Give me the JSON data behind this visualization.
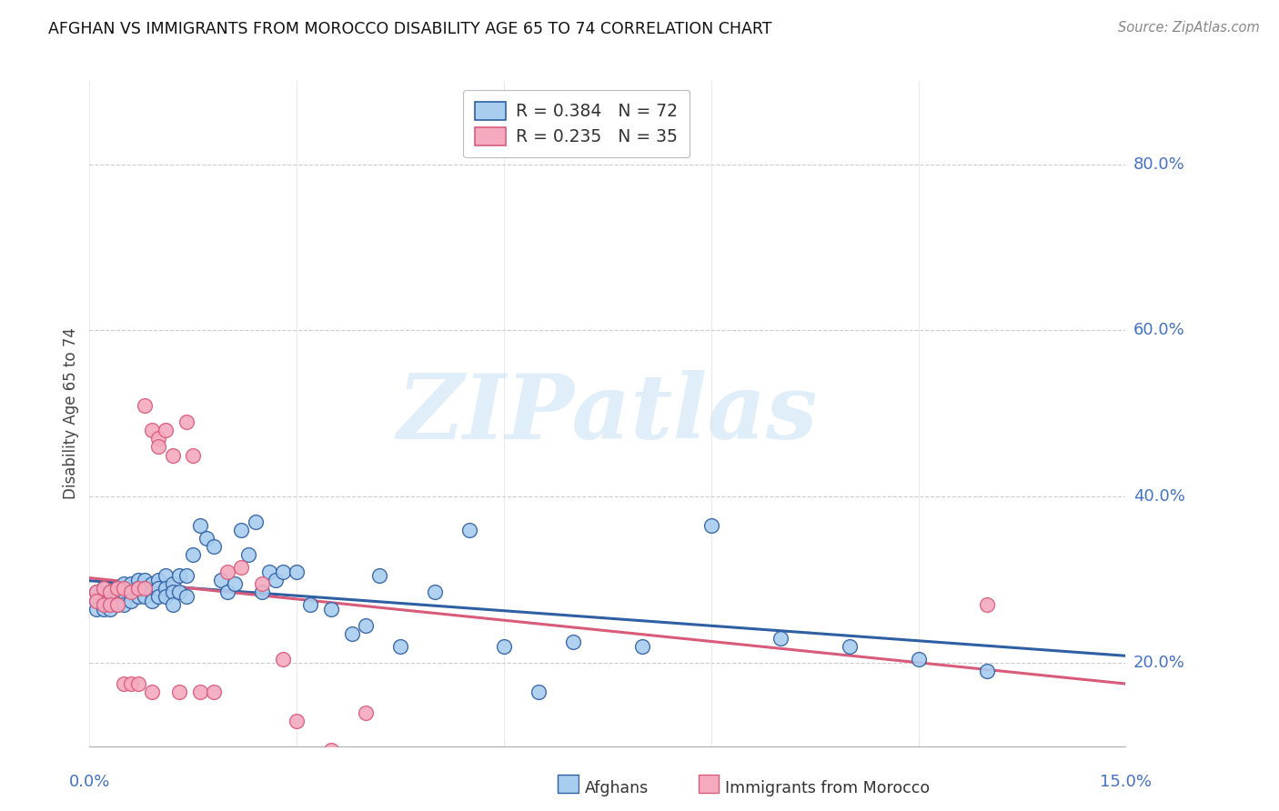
{
  "title": "AFGHAN VS IMMIGRANTS FROM MOROCCO DISABILITY AGE 65 TO 74 CORRELATION CHART",
  "source": "Source: ZipAtlas.com",
  "ylabel": "Disability Age 65 to 74",
  "color_afghan": "#A8CDEF",
  "color_morocco": "#F5AABF",
  "color_afghan_line": "#2E5FA3",
  "color_morocco_line": "#D95B7A",
  "color_text_blue": "#4472C4",
  "color_grid": "#CCCCCC",
  "background_color": "#FFFFFF",
  "xlim": [
    0.0,
    0.15
  ],
  "ylim": [
    0.1,
    0.9
  ],
  "yticks": [
    0.2,
    0.4,
    0.6,
    0.8
  ],
  "legend_r1": "R = 0.384",
  "legend_n1": "N = 72",
  "legend_r2": "R = 0.235",
  "legend_n2": "N = 35",
  "watermark": "ZIPatlas",
  "afghan_x": [
    0.001,
    0.001,
    0.001,
    0.002,
    0.002,
    0.002,
    0.003,
    0.003,
    0.003,
    0.004,
    0.004,
    0.004,
    0.005,
    0.005,
    0.005,
    0.006,
    0.006,
    0.006,
    0.007,
    0.007,
    0.007,
    0.008,
    0.008,
    0.008,
    0.009,
    0.009,
    0.009,
    0.01,
    0.01,
    0.01,
    0.011,
    0.011,
    0.011,
    0.012,
    0.012,
    0.012,
    0.013,
    0.013,
    0.014,
    0.014,
    0.015,
    0.016,
    0.017,
    0.018,
    0.019,
    0.02,
    0.021,
    0.022,
    0.023,
    0.024,
    0.025,
    0.026,
    0.027,
    0.028,
    0.03,
    0.032,
    0.035,
    0.038,
    0.04,
    0.042,
    0.045,
    0.05,
    0.055,
    0.06,
    0.065,
    0.07,
    0.08,
    0.09,
    0.1,
    0.11,
    0.12,
    0.13
  ],
  "afghan_y": [
    0.285,
    0.275,
    0.265,
    0.29,
    0.275,
    0.265,
    0.285,
    0.275,
    0.265,
    0.29,
    0.28,
    0.27,
    0.295,
    0.285,
    0.27,
    0.295,
    0.285,
    0.275,
    0.3,
    0.29,
    0.28,
    0.3,
    0.29,
    0.28,
    0.295,
    0.285,
    0.275,
    0.3,
    0.29,
    0.28,
    0.305,
    0.29,
    0.28,
    0.295,
    0.285,
    0.27,
    0.305,
    0.285,
    0.305,
    0.28,
    0.33,
    0.365,
    0.35,
    0.34,
    0.3,
    0.285,
    0.295,
    0.36,
    0.33,
    0.37,
    0.285,
    0.31,
    0.3,
    0.31,
    0.31,
    0.27,
    0.265,
    0.235,
    0.245,
    0.305,
    0.22,
    0.285,
    0.36,
    0.22,
    0.165,
    0.225,
    0.22,
    0.365,
    0.23,
    0.22,
    0.205,
    0.19
  ],
  "morocco_x": [
    0.001,
    0.001,
    0.002,
    0.002,
    0.003,
    0.003,
    0.004,
    0.004,
    0.005,
    0.005,
    0.006,
    0.006,
    0.007,
    0.007,
    0.008,
    0.008,
    0.009,
    0.009,
    0.01,
    0.01,
    0.011,
    0.012,
    0.013,
    0.014,
    0.015,
    0.016,
    0.018,
    0.02,
    0.022,
    0.025,
    0.028,
    0.03,
    0.035,
    0.04,
    0.13
  ],
  "morocco_y": [
    0.285,
    0.275,
    0.29,
    0.27,
    0.285,
    0.27,
    0.29,
    0.27,
    0.29,
    0.175,
    0.285,
    0.175,
    0.29,
    0.175,
    0.29,
    0.51,
    0.48,
    0.165,
    0.47,
    0.46,
    0.48,
    0.45,
    0.165,
    0.49,
    0.45,
    0.165,
    0.165,
    0.31,
    0.315,
    0.295,
    0.205,
    0.13,
    0.095,
    0.14,
    0.27
  ]
}
